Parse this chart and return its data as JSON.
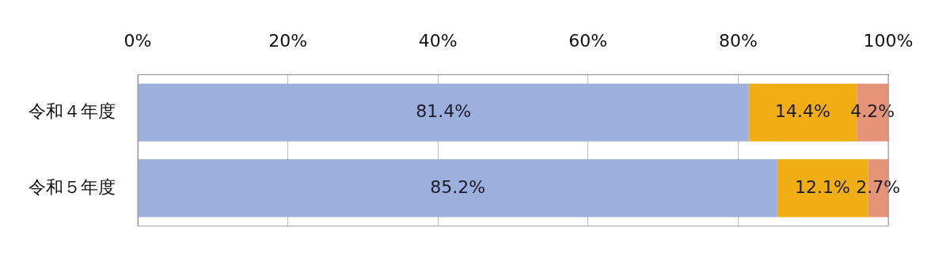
{
  "chart_data": {
    "type": "bar",
    "orientation": "horizontal",
    "stacked": true,
    "categories": [
      "令和４年度",
      "令和５年度"
    ],
    "series": [
      {
        "color": "#9dafdc",
        "values": [
          81.4,
          85.2
        ],
        "value_labels": [
          "81.4%",
          "85.2%"
        ]
      },
      {
        "color": "#f0ad14",
        "values": [
          14.4,
          12.1
        ],
        "value_labels": [
          "14.4%",
          "12.1%"
        ]
      },
      {
        "color": "#e59478",
        "values": [
          4.2,
          2.7
        ],
        "value_labels": [
          "4.2%",
          "2.7%"
        ]
      }
    ],
    "xlim": [
      0,
      100
    ],
    "xticks": [
      {
        "value": 0,
        "label": "0%"
      },
      {
        "value": 20,
        "label": "20%"
      },
      {
        "value": 40,
        "label": "40%"
      },
      {
        "value": 60,
        "label": "60%"
      },
      {
        "value": 80,
        "label": "80%"
      },
      {
        "value": 100,
        "label": "100%"
      }
    ],
    "grid": "x",
    "legend": false
  }
}
